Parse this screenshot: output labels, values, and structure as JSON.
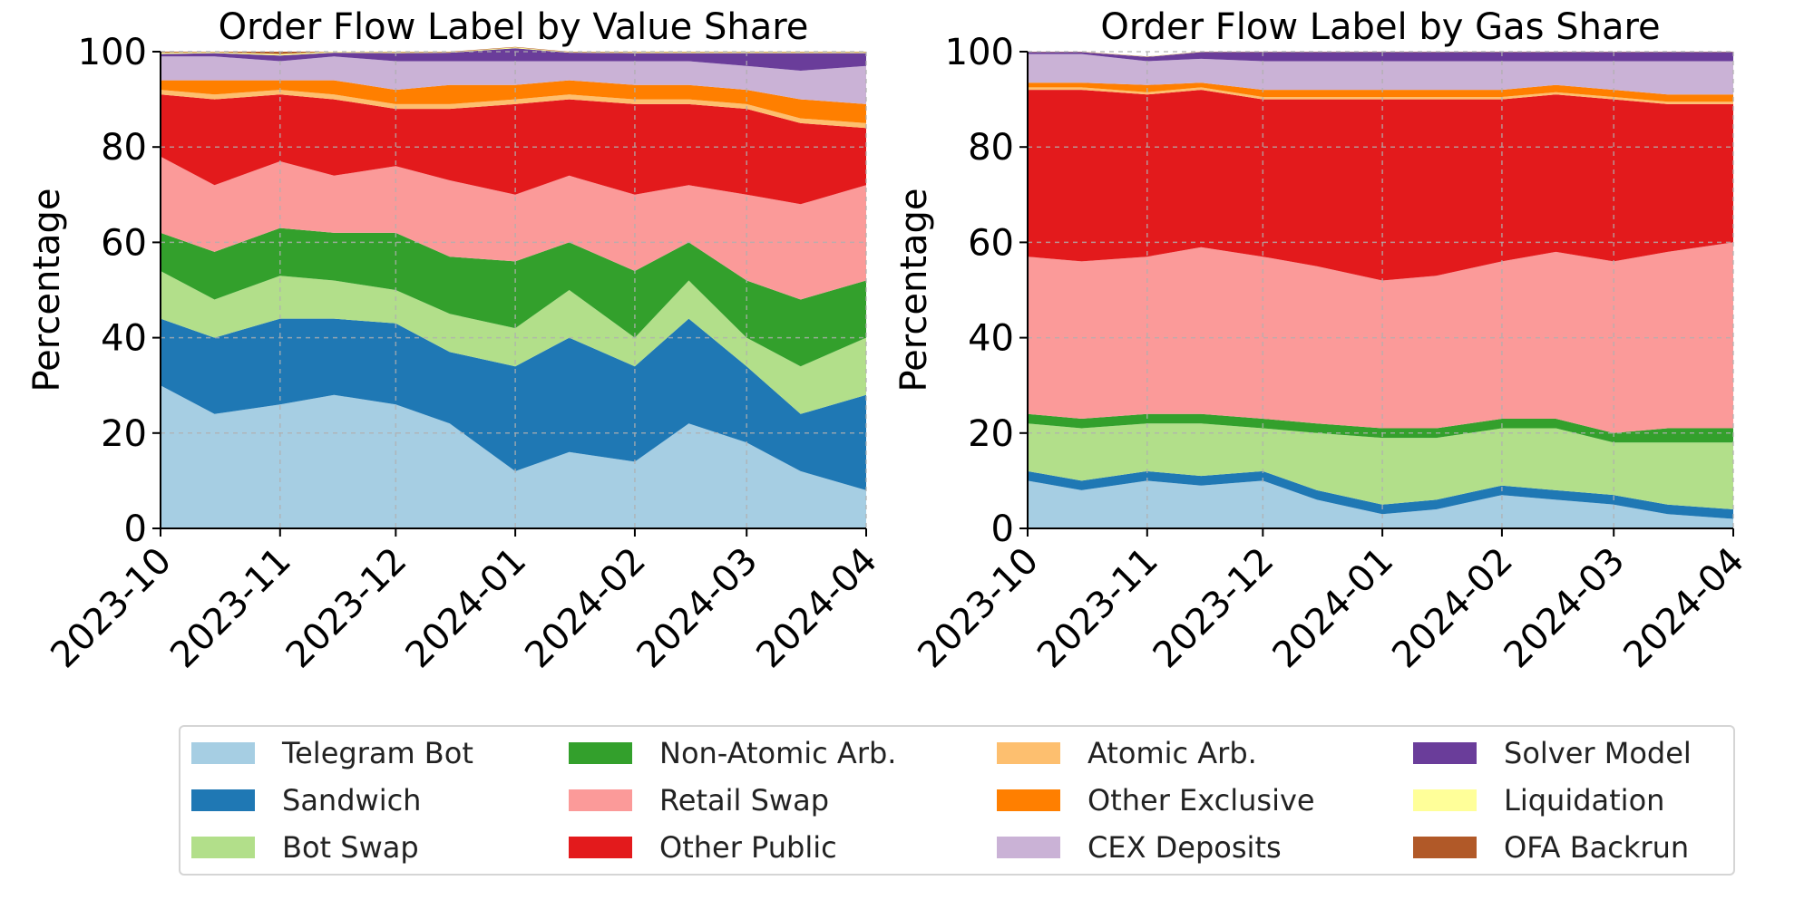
{
  "chart_data": [
    {
      "type": "area",
      "stacked": true,
      "title": "Order Flow Label by Value Share",
      "ylabel": "Percentage",
      "xlabel": "",
      "ylim": [
        0,
        100
      ],
      "yticks": [
        "0",
        "20",
        "40",
        "60",
        "80",
        "100"
      ],
      "xticks": [
        "2023-10",
        "2023-11",
        "2023-12",
        "2024-01",
        "2024-02",
        "2024-03",
        "2024-04"
      ],
      "grid": true,
      "x": [
        "2023-10-01",
        "2023-10-15",
        "2023-11-01",
        "2023-11-15",
        "2023-12-01",
        "2023-12-15",
        "2024-01-01",
        "2024-01-15",
        "2024-02-01",
        "2024-02-15",
        "2024-03-01",
        "2024-03-15",
        "2024-04-01"
      ],
      "series": [
        {
          "name": "Telegram Bot",
          "values": [
            30,
            24,
            26,
            28,
            26,
            22,
            12,
            16,
            14,
            22,
            18,
            12,
            8
          ]
        },
        {
          "name": "Sandwich",
          "values": [
            14,
            16,
            18,
            16,
            17,
            15,
            22,
            24,
            20,
            22,
            16,
            12,
            20
          ]
        },
        {
          "name": "Bot Swap",
          "values": [
            10,
            8,
            9,
            8,
            7,
            8,
            8,
            10,
            6,
            8,
            6,
            10,
            12
          ]
        },
        {
          "name": "Non-Atomic Arb.",
          "values": [
            8,
            10,
            10,
            10,
            12,
            12,
            14,
            10,
            14,
            8,
            12,
            14,
            12
          ]
        },
        {
          "name": "Retail Swap",
          "values": [
            16,
            14,
            14,
            12,
            14,
            16,
            14,
            14,
            16,
            12,
            18,
            20,
            20
          ]
        },
        {
          "name": "Other Public",
          "values": [
            13,
            18,
            14,
            16,
            12,
            15,
            19,
            16,
            19,
            17,
            18,
            17,
            12
          ]
        },
        {
          "name": "Atomic Arb.",
          "values": [
            1,
            1,
            1,
            1,
            1,
            1,
            1,
            1,
            1,
            1,
            1,
            1,
            1
          ]
        },
        {
          "name": "Other Exclusive",
          "values": [
            2,
            3,
            2,
            3,
            3,
            4,
            3,
            3,
            3,
            3,
            3,
            4,
            4
          ]
        },
        {
          "name": "CEX Deposits",
          "values": [
            5,
            5,
            4,
            5,
            6,
            5,
            5,
            4,
            5,
            5,
            5,
            6,
            8
          ]
        },
        {
          "name": "Solver Model",
          "values": [
            0.5,
            0.7,
            1.2,
            0.8,
            1.7,
            1.8,
            2.7,
            1.8,
            1.7,
            1.7,
            2.7,
            3.7,
            2.7
          ]
        },
        {
          "name": "Liquidation",
          "values": [
            0.3,
            0.2,
            0.3,
            0.2,
            0.2,
            0.1,
            0.2,
            0.1,
            0.2,
            0.2,
            0.2,
            0.2,
            0.2
          ]
        },
        {
          "name": "OFA Backrun",
          "values": [
            0.2,
            0.1,
            0.5,
            0,
            0.1,
            0.1,
            0.1,
            0.1,
            0.1,
            0.1,
            0.1,
            0.1,
            0.1
          ]
        }
      ]
    },
    {
      "type": "area",
      "stacked": true,
      "title": "Order Flow Label by Gas Share",
      "ylabel": "Percentage",
      "xlabel": "",
      "ylim": [
        0,
        100
      ],
      "yticks": [
        "0",
        "20",
        "40",
        "60",
        "80",
        "100"
      ],
      "xticks": [
        "2023-10",
        "2023-11",
        "2023-12",
        "2024-01",
        "2024-02",
        "2024-03",
        "2024-04"
      ],
      "grid": true,
      "x": [
        "2023-10-01",
        "2023-10-15",
        "2023-11-01",
        "2023-11-15",
        "2023-12-01",
        "2023-12-15",
        "2024-01-01",
        "2024-01-15",
        "2024-02-01",
        "2024-02-15",
        "2024-03-01",
        "2024-03-15",
        "2024-04-01"
      ],
      "series": [
        {
          "name": "Telegram Bot",
          "values": [
            10,
            8,
            10,
            9,
            10,
            6,
            3,
            4,
            7,
            6,
            5,
            3,
            2
          ]
        },
        {
          "name": "Sandwich",
          "values": [
            2,
            2,
            2,
            2,
            2,
            2,
            2,
            2,
            2,
            2,
            2,
            2,
            2
          ]
        },
        {
          "name": "Bot Swap",
          "values": [
            10,
            11,
            10,
            11,
            9,
            12,
            14,
            13,
            12,
            13,
            11,
            13,
            14
          ]
        },
        {
          "name": "Non-Atomic Arb.",
          "values": [
            2,
            2,
            2,
            2,
            2,
            2,
            2,
            2,
            2,
            2,
            2,
            3,
            3
          ]
        },
        {
          "name": "Retail Swap",
          "values": [
            33,
            33,
            33,
            35,
            34,
            33,
            31,
            32,
            33,
            35,
            36,
            37,
            39
          ]
        },
        {
          "name": "Other Public",
          "values": [
            35,
            36,
            34,
            33,
            33,
            35,
            38,
            37,
            34,
            33,
            34,
            31,
            29
          ]
        },
        {
          "name": "Atomic Arb.",
          "values": [
            0.5,
            0.5,
            0.5,
            0.5,
            0.5,
            0.5,
            0.5,
            0.5,
            0.5,
            0.5,
            0.5,
            0.5,
            0.5
          ]
        },
        {
          "name": "Other Exclusive",
          "values": [
            1,
            1,
            1.5,
            1,
            1.5,
            1.5,
            1.5,
            1.5,
            1.5,
            1.5,
            1.5,
            1.5,
            1.5
          ]
        },
        {
          "name": "CEX Deposits",
          "values": [
            6,
            6,
            5,
            5,
            6,
            6,
            6,
            6,
            6,
            5,
            6,
            7,
            7
          ]
        },
        {
          "name": "Solver Model",
          "values": [
            0.4,
            0.4,
            0.9,
            1.4,
            1.9,
            1.9,
            1.9,
            1.9,
            1.9,
            1.9,
            1.9,
            1.9,
            1.9
          ]
        },
        {
          "name": "Liquidation",
          "values": [
            0.05,
            0.05,
            0.05,
            0.05,
            0.05,
            0.05,
            0.05,
            0.05,
            0.05,
            0.05,
            0.05,
            0.05,
            0.05
          ]
        },
        {
          "name": "OFA Backrun",
          "values": [
            0.05,
            0.05,
            0.05,
            0.05,
            0.05,
            0.05,
            0.05,
            0.05,
            0.05,
            0.05,
            0.05,
            0.05,
            0.05
          ]
        }
      ]
    }
  ],
  "legend": {
    "placement": "bottom",
    "entries": [
      {
        "label": "Telegram Bot",
        "color": "#a6cee3"
      },
      {
        "label": "Sandwich",
        "color": "#1f78b4"
      },
      {
        "label": "Bot Swap",
        "color": "#b2df8a"
      },
      {
        "label": "Non-Atomic Arb.",
        "color": "#33a02c"
      },
      {
        "label": "Retail Swap",
        "color": "#fb9a99"
      },
      {
        "label": "Other Public",
        "color": "#e31a1c"
      },
      {
        "label": "Atomic Arb.",
        "color": "#fdbf6f"
      },
      {
        "label": "Other Exclusive",
        "color": "#ff7f00"
      },
      {
        "label": "CEX Deposits",
        "color": "#cab2d6"
      },
      {
        "label": "Solver Model",
        "color": "#6a3d9a"
      },
      {
        "label": "Liquidation",
        "color": "#ffff99"
      },
      {
        "label": "OFA Backrun",
        "color": "#b15928"
      }
    ]
  }
}
